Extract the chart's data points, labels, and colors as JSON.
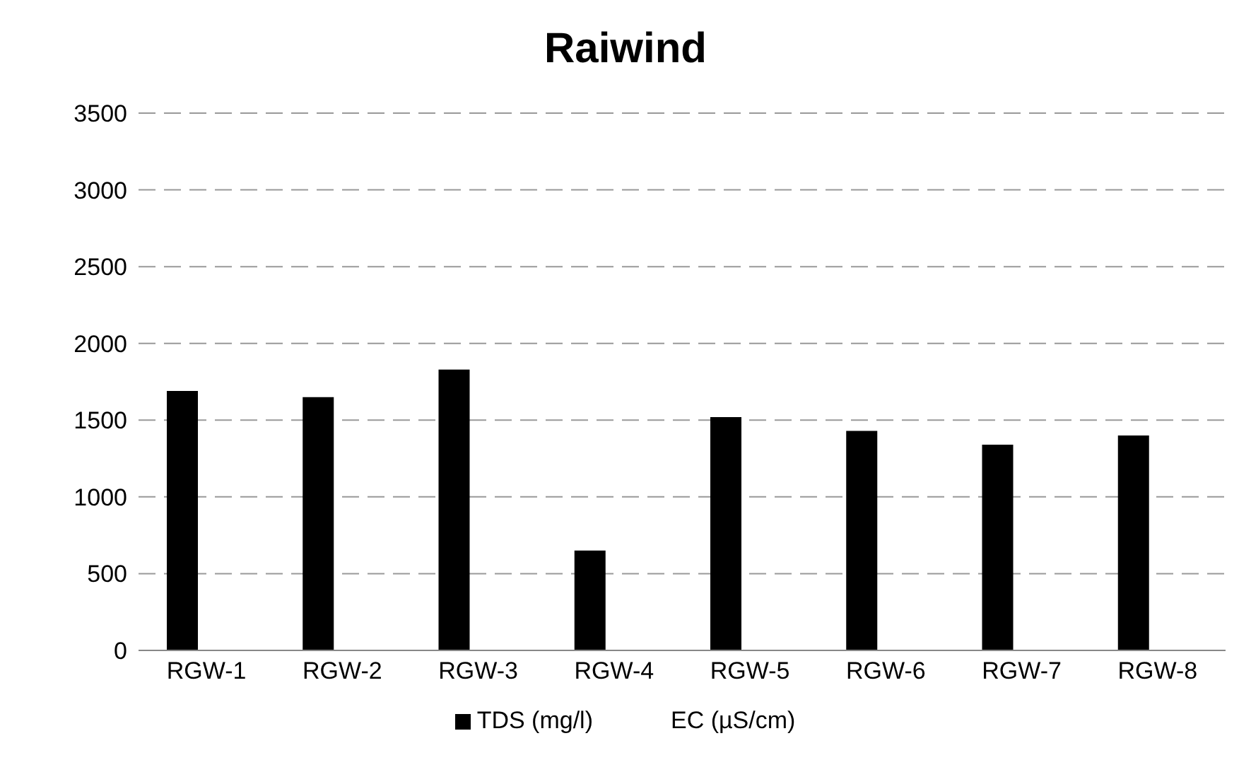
{
  "chart_data": {
    "type": "bar",
    "title": "Raiwind",
    "categories": [
      "RGW-1",
      "RGW-2",
      "RGW-3",
      "RGW-4",
      "RGW-5",
      "RGW-6",
      "RGW-7",
      "RGW-8"
    ],
    "series": [
      {
        "name": "TDS (mg/l)",
        "color": "#000000",
        "values": [
          1690,
          1650,
          1830,
          650,
          1520,
          1430,
          1340,
          1400
        ]
      },
      {
        "name": "EC (µS/cm)",
        "values": [
          null,
          null,
          null,
          null,
          null,
          null,
          null,
          null
        ]
      }
    ],
    "ylim": [
      0,
      3500
    ],
    "yticks": [
      0,
      500,
      1000,
      1500,
      2000,
      2500,
      3000,
      3500
    ],
    "grid": "y",
    "legend": "bottom"
  }
}
